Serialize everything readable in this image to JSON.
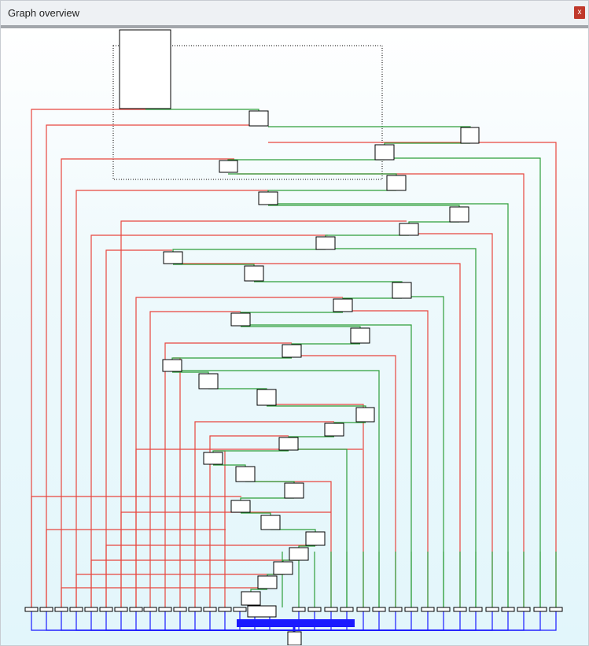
{
  "window": {
    "title": "Graph overview",
    "close_label": "x"
  },
  "colors": {
    "true_edge": "#2e9e3a",
    "false_edge": "#e8463e",
    "return_edge": "#1a1aff",
    "node_fill": "#ffffff",
    "node_border": "#000000",
    "viewport_border": "#000000"
  },
  "icons": {
    "close": "close-icon"
  }
}
